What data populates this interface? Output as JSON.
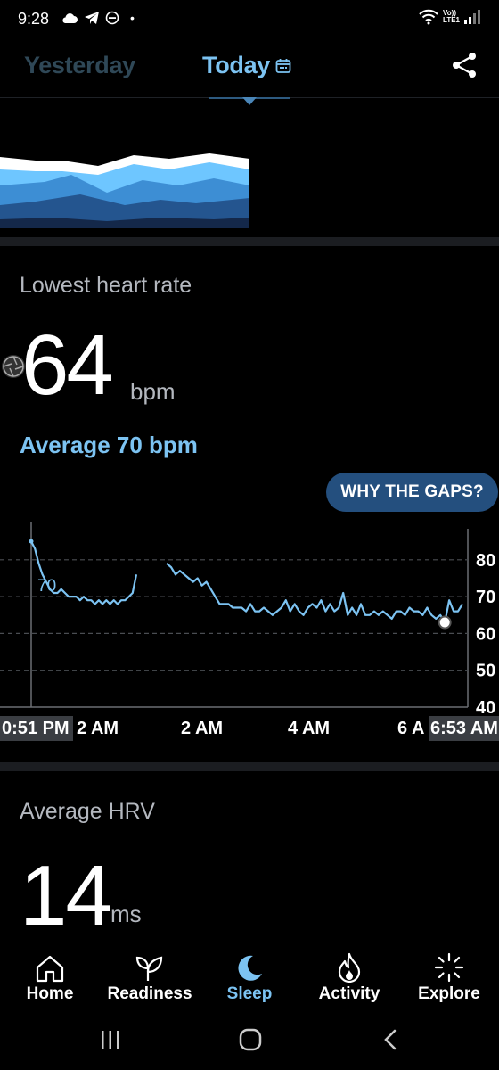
{
  "status_bar": {
    "time": "9:28",
    "dot": "•",
    "left_icons": [
      "cloud-icon",
      "telegram-icon",
      "dnd-icon"
    ],
    "right_icons": [
      "wifi-icon",
      "volte-icon",
      "signal-icon"
    ],
    "network_label_top": "Vo))",
    "network_label_bottom": "LTE1"
  },
  "tabs": {
    "yesterday": "Yesterday",
    "today": "Today"
  },
  "heart_rate": {
    "title": "Lowest heart rate",
    "value": "64",
    "unit": "bpm",
    "average": "Average 70 bpm",
    "gaps_button": "WHY THE GAPS?"
  },
  "chart_data": {
    "type": "line",
    "y_ticks": [
      "80",
      "70",
      "60",
      "50",
      "40"
    ],
    "ylim": [
      40,
      85
    ],
    "x_labels": [
      "0:51 PM",
      "2 AM",
      "2 AM",
      "4 AM",
      "6 A",
      "6:53 AM"
    ],
    "average_label": "70",
    "average_value": 70,
    "grid": true,
    "colors": {
      "line": "#7cc3f2",
      "grid": "#4a4d52",
      "axis": "#6b6e73"
    },
    "series": [
      {
        "segments": [
          [
            85,
            83,
            79,
            76,
            74,
            72,
            71,
            71,
            72,
            71,
            70,
            70,
            70,
            69,
            70,
            69,
            69,
            68,
            69,
            68,
            69,
            68,
            69,
            68,
            69,
            69,
            70,
            71,
            76
          ],
          [
            79,
            78,
            76,
            77,
            76,
            75,
            74,
            75,
            73,
            74,
            72,
            70,
            68,
            68,
            68,
            67,
            67,
            67,
            66,
            68,
            66,
            66,
            67,
            66,
            65,
            66,
            67,
            69,
            66,
            68,
            66,
            65,
            67,
            68,
            67,
            69,
            66,
            68,
            66,
            67,
            71,
            65,
            67,
            65,
            68,
            65,
            65,
            66,
            65,
            66,
            65,
            64,
            66,
            66,
            65,
            67,
            66,
            66,
            65,
            67,
            65,
            64,
            65,
            63,
            69,
            66,
            66,
            68
          ]
        ]
      }
    ],
    "lowest_value": 64
  },
  "hrv": {
    "title": "Average HRV",
    "value": "14",
    "unit": "ms"
  },
  "bottom_nav": {
    "items": [
      {
        "label": "Home",
        "icon": "home-icon"
      },
      {
        "label": "Readiness",
        "icon": "sprout-icon"
      },
      {
        "label": "Sleep",
        "icon": "moon-icon"
      },
      {
        "label": "Activity",
        "icon": "flame-icon"
      },
      {
        "label": "Explore",
        "icon": "sparkle-icon"
      }
    ],
    "active": "Sleep",
    "active_color": "#7cc3f2"
  },
  "system_nav": [
    "recents-icon",
    "home-circle-icon",
    "back-icon"
  ]
}
